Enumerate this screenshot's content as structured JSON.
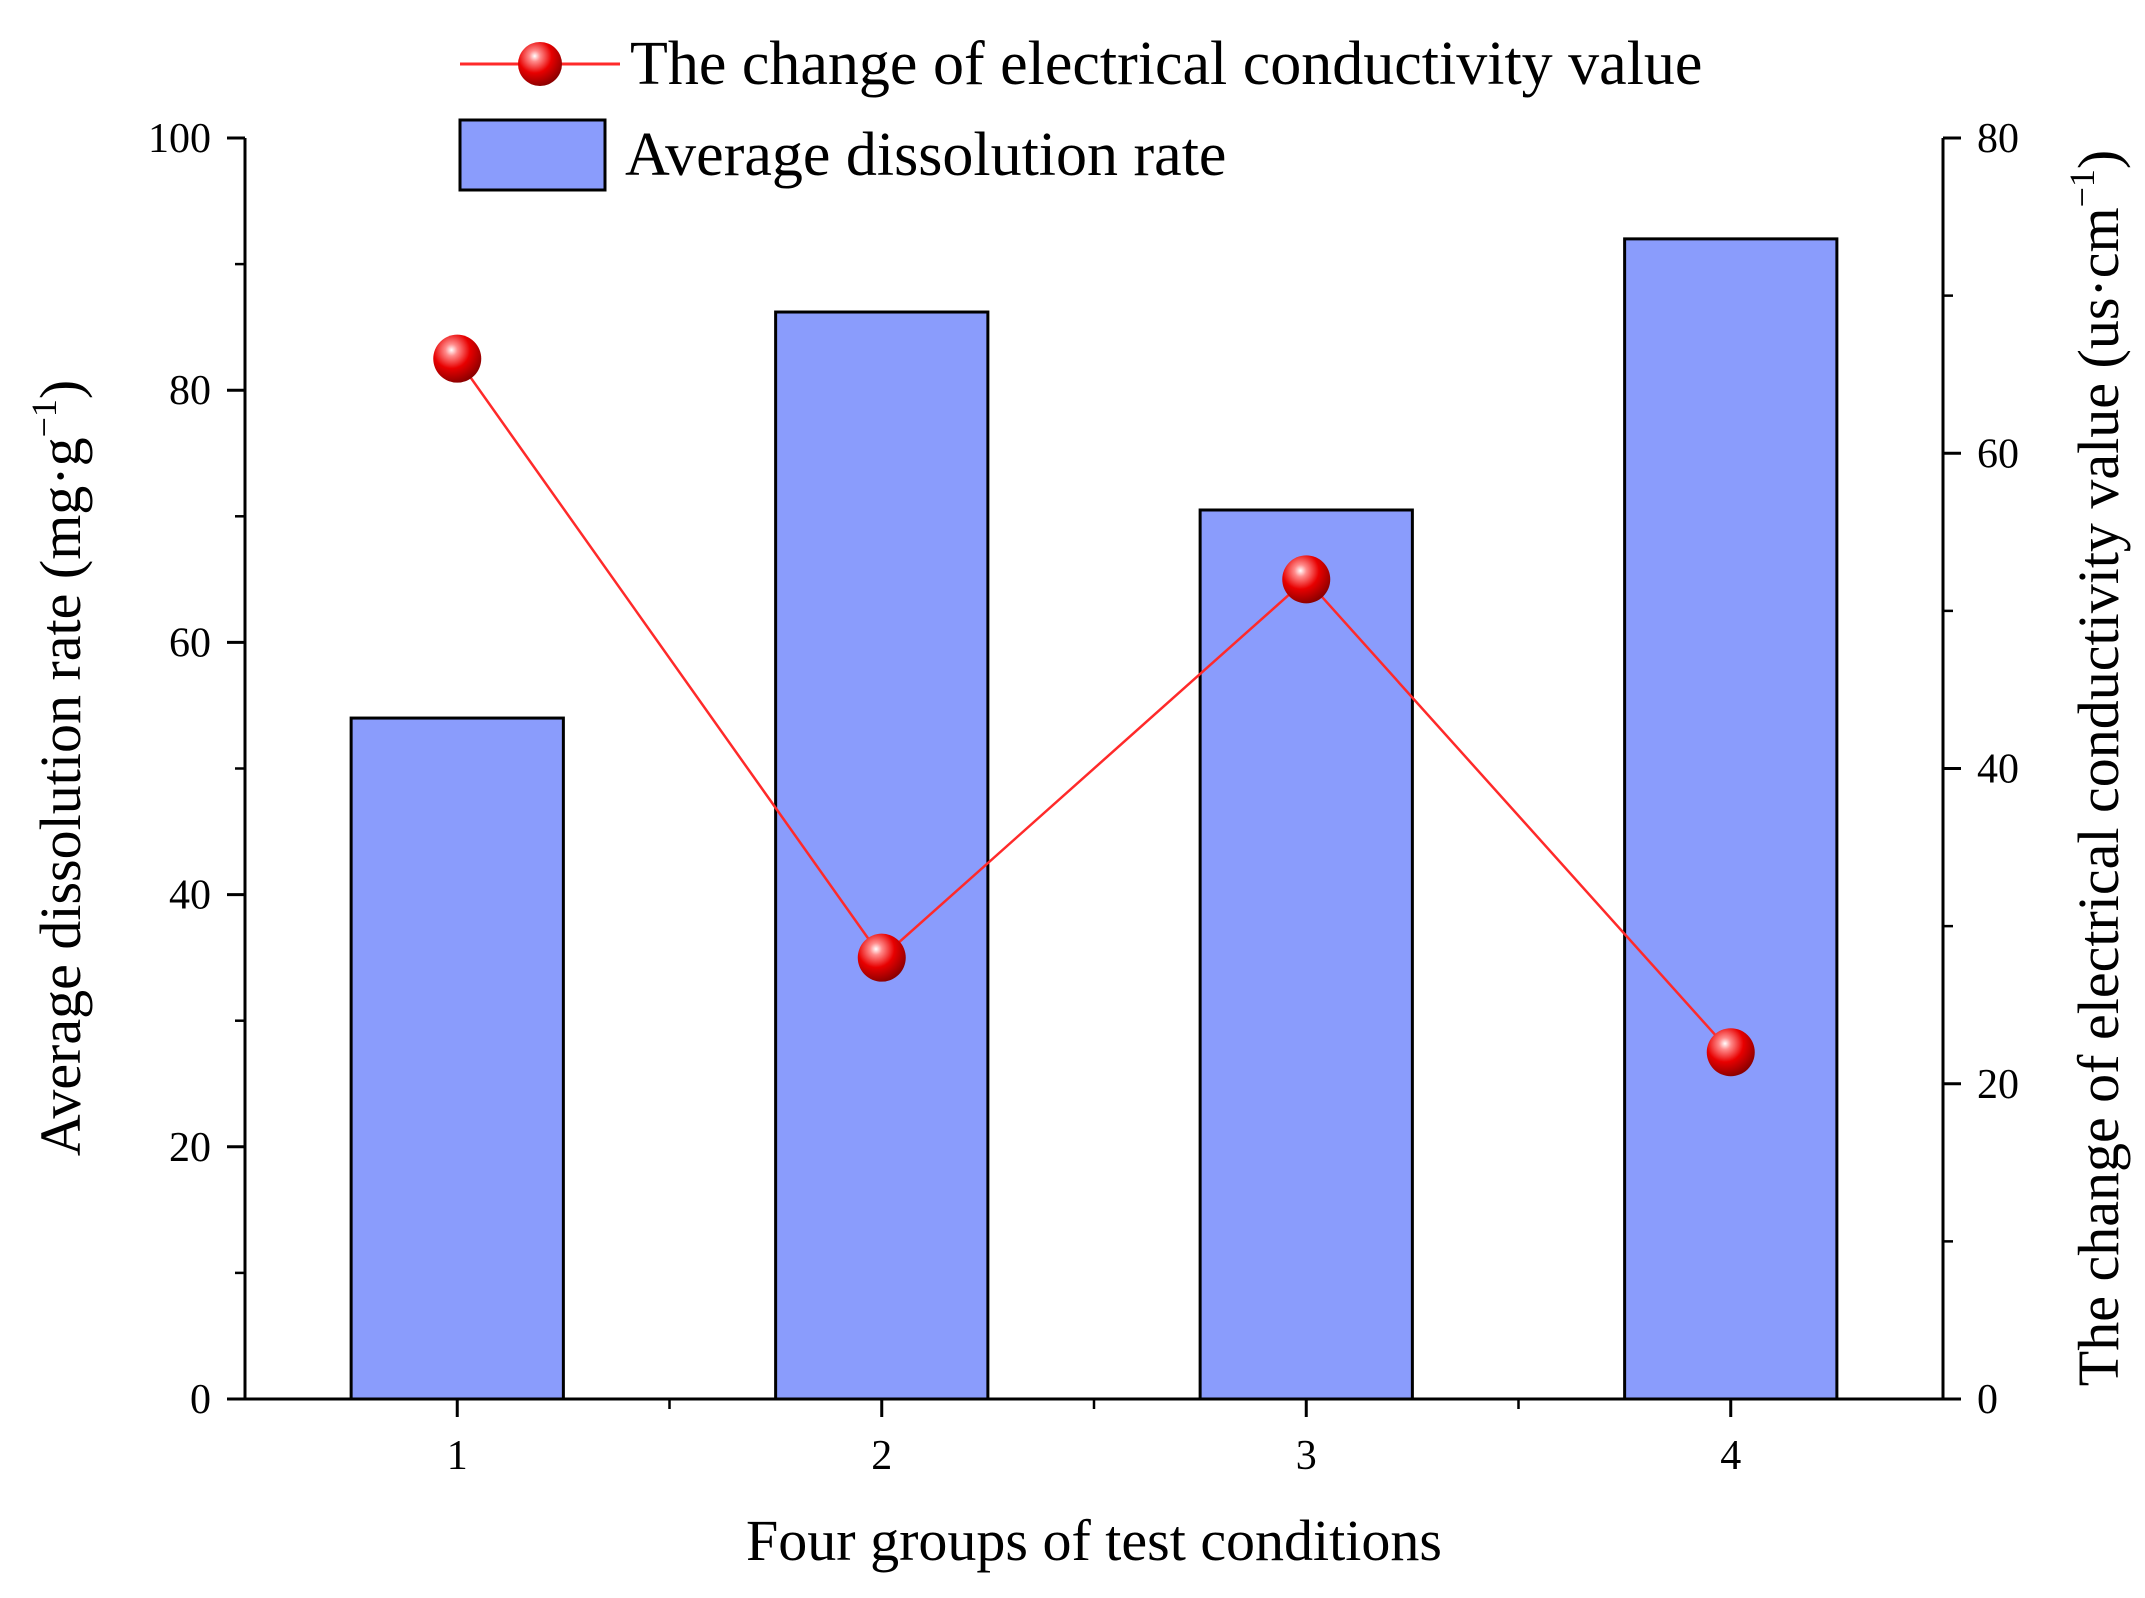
{
  "chart_data": {
    "type": "bar",
    "categories": [
      "1",
      "2",
      "3",
      "4"
    ],
    "series": [
      {
        "name": "Average dissolution rate",
        "kind": "bar",
        "axis": "left",
        "values": [
          54,
          86.2,
          70.5,
          92
        ]
      },
      {
        "name": "The change of electrical conductivity value",
        "kind": "line",
        "axis": "right",
        "values": [
          66,
          28,
          52,
          22
        ]
      }
    ],
    "xlabel": "Four groups of test conditions",
    "ylabel_left": {
      "text": "Average dissolution rate (mg·g",
      "sup": "−1",
      "close": ")"
    },
    "ylabel_right": {
      "text": "The change of electrical conductivity value (us·cm",
      "sup": "−1",
      "close": ")"
    },
    "ylim_left": [
      0,
      100
    ],
    "ylim_right": [
      0,
      80
    ],
    "yticks_left": [
      "0",
      "20",
      "40",
      "60",
      "80",
      "100"
    ],
    "yticks_right": [
      "0",
      "20",
      "40",
      "60",
      "80"
    ],
    "grid": false,
    "legend_position": "top",
    "colors": {
      "bar_fill": "#8a9cfc",
      "bar_stroke": "#000000",
      "line": "#ff2a2a",
      "marker": "#e60000"
    }
  }
}
